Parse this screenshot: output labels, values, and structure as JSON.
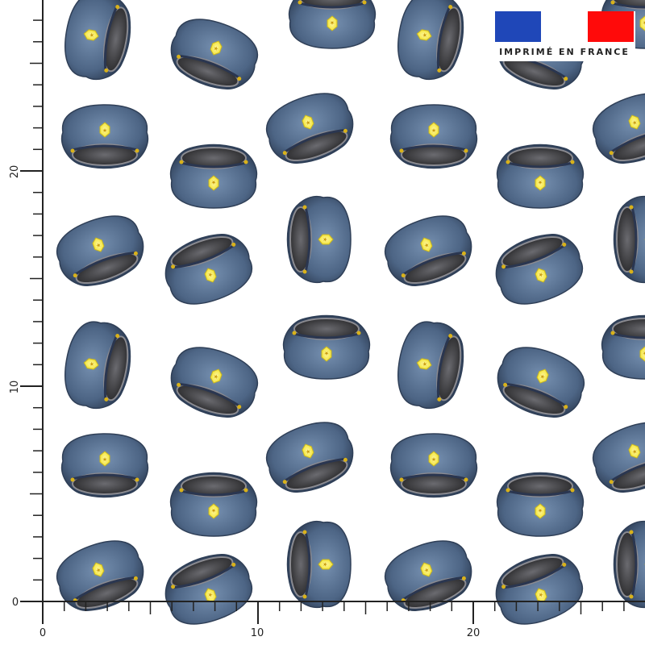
{
  "pattern": {
    "motif": "police-cap-icon",
    "colors": {
      "cap_blue": "#4d6585",
      "cap_dark": "#2f3f57",
      "crown_gray": "#5a5a5e",
      "crown_dark": "#2a2a2c",
      "badge_yellow": "#f3e53a",
      "background": "#ffffff"
    }
  },
  "ruler": {
    "vertical_labels": [
      "20",
      "10",
      "0"
    ],
    "horizontal_labels": [
      "0",
      "10",
      "20"
    ]
  },
  "badge": {
    "text": "IMPRIMÉ EN FRANCE",
    "flag_colors": {
      "blue": "#1f47b8",
      "white": "#ffffff",
      "red": "#ff0a0a"
    }
  }
}
